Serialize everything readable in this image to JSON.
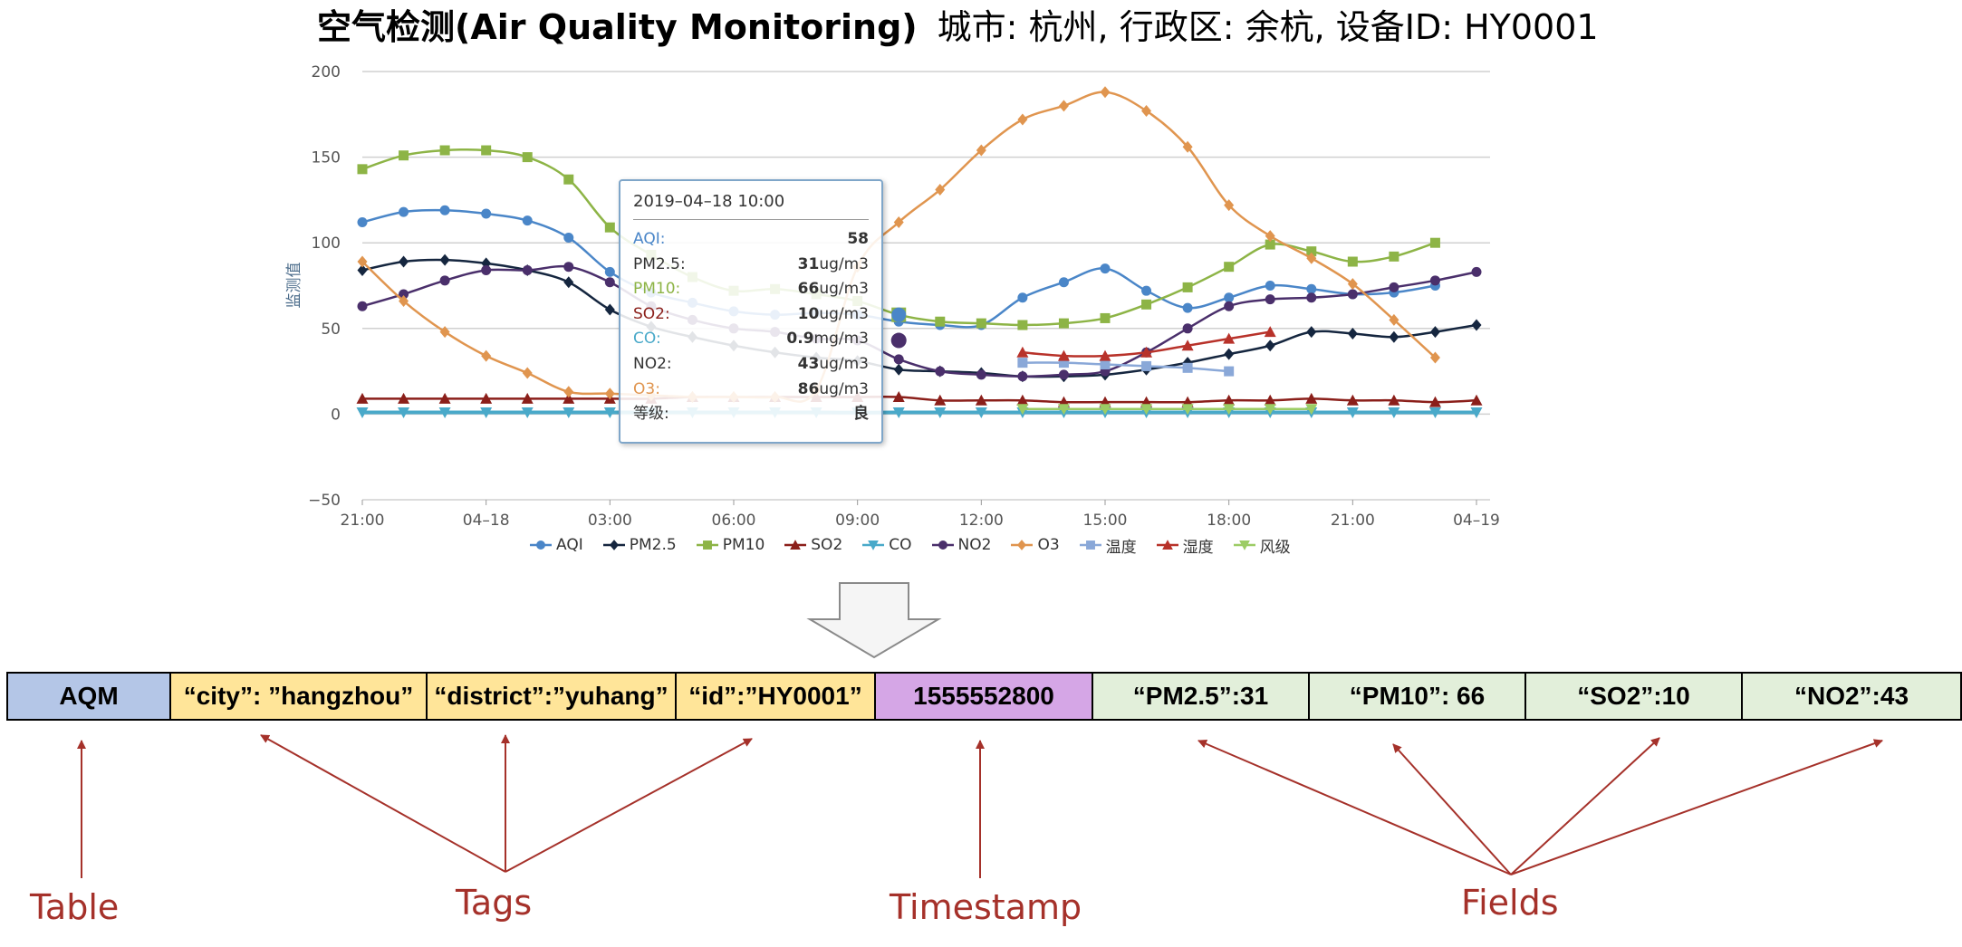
{
  "title": {
    "main": "空气检测(Air Quality Monitoring)",
    "subtitle": "城市: 杭州, 行政区: 余杭, 设备ID: HY0001"
  },
  "chart_data": {
    "type": "line",
    "ylabel": "监测值",
    "xlabel": "",
    "ylim": [
      -50,
      200
    ],
    "yticks": [
      "200",
      "150",
      "100",
      "50",
      "0",
      "−50"
    ],
    "ytick_values": [
      200,
      150,
      100,
      50,
      0,
      -50
    ],
    "xticks": [
      "21:00",
      "04–18",
      "03:00",
      "06:00",
      "09:00",
      "12:00",
      "15:00",
      "18:00",
      "21:00",
      "04–19"
    ],
    "x_hours": [
      0,
      1,
      2,
      3,
      4,
      5,
      6,
      7,
      8,
      9,
      10,
      11,
      12,
      13,
      14,
      15,
      16,
      17,
      18,
      19,
      20,
      21,
      22,
      23,
      24,
      25,
      26,
      27
    ],
    "grid": true,
    "legend_position": "bottom",
    "series": [
      {
        "name": "AQI",
        "color": "#4a86c8",
        "marker": "circle",
        "values": [
          112,
          118,
          119,
          117,
          113,
          103,
          83,
          71,
          65,
          60,
          58,
          59,
          58,
          54,
          52,
          52,
          68,
          77,
          85,
          72,
          62,
          68,
          75,
          73,
          70,
          71,
          75
        ]
      },
      {
        "name": "PM2.5",
        "color": "#15263f",
        "marker": "diamond",
        "values": [
          84,
          89,
          90,
          88,
          84,
          77,
          61,
          51,
          45,
          40,
          36,
          33,
          31,
          26,
          25,
          24,
          22,
          22,
          23,
          26,
          30,
          35,
          40,
          48,
          47,
          45,
          48,
          52
        ]
      },
      {
        "name": "PM10",
        "color": "#8db446",
        "marker": "square",
        "values": [
          143,
          151,
          154,
          154,
          150,
          137,
          109,
          93,
          80,
          72,
          73,
          70,
          66,
          58,
          54,
          53,
          52,
          53,
          56,
          64,
          74,
          86,
          99,
          95,
          89,
          92,
          100
        ]
      },
      {
        "name": "SO2",
        "color": "#8b1f1a",
        "marker": "triangle",
        "values": [
          9,
          9,
          9,
          9,
          9,
          9,
          9,
          9,
          10,
          10,
          10,
          10,
          10,
          10,
          8,
          8,
          8,
          7,
          7,
          7,
          7,
          8,
          8,
          9,
          8,
          8,
          7,
          8
        ]
      },
      {
        "name": "CO",
        "color": "#49a9c9",
        "marker": "triangle-down",
        "values": [
          1,
          1,
          1,
          1,
          1,
          1,
          1,
          1,
          1,
          1,
          1,
          1,
          0.9,
          1,
          1,
          1,
          1,
          1,
          1,
          1,
          1,
          1,
          1,
          1,
          1,
          1,
          1,
          1
        ]
      },
      {
        "name": "NO2",
        "color": "#4a2f6b",
        "marker": "circle",
        "values": [
          63,
          70,
          78,
          84,
          84,
          86,
          77,
          63,
          55,
          50,
          48,
          44,
          43,
          32,
          25,
          23,
          22,
          23,
          25,
          36,
          50,
          63,
          67,
          68,
          70,
          74,
          78,
          83
        ]
      },
      {
        "name": "O3",
        "color": "#e0954f",
        "marker": "diamond",
        "values": [
          89,
          66,
          48,
          34,
          24,
          13,
          12,
          11,
          10,
          10,
          10,
          14,
          86,
          112,
          131,
          154,
          172,
          180,
          188,
          177,
          156,
          122,
          104,
          91,
          76,
          55,
          33
        ]
      },
      {
        "name": "温度",
        "color": "#8aa8d8",
        "marker": "square",
        "values": [
          null,
          null,
          null,
          null,
          null,
          null,
          null,
          null,
          null,
          null,
          null,
          null,
          null,
          null,
          null,
          null,
          30,
          30,
          29,
          28,
          27,
          25
        ]
      },
      {
        "name": "湿度",
        "color": "#b8322a",
        "marker": "triangle",
        "values": [
          null,
          null,
          null,
          null,
          null,
          null,
          null,
          null,
          null,
          null,
          null,
          null,
          null,
          null,
          null,
          null,
          36,
          34,
          34,
          36,
          40,
          44,
          48
        ]
      },
      {
        "name": "风级",
        "color": "#9ccc65",
        "marker": "triangle-down",
        "values": [
          null,
          null,
          null,
          null,
          null,
          null,
          null,
          null,
          null,
          null,
          null,
          null,
          null,
          null,
          null,
          null,
          3,
          3,
          3,
          3,
          3,
          3,
          3,
          3
        ]
      }
    ]
  },
  "tooltip": {
    "time": "2019–04–18 10:00",
    "rows": [
      {
        "label": "AQI:",
        "value": "58",
        "unit": "",
        "color": "#4a86c8"
      },
      {
        "label": "PM2.5:",
        "value": "31",
        "unit": "ug/m3",
        "color": "#333333"
      },
      {
        "label": "PM10:",
        "value": "66",
        "unit": "ug/m3",
        "color": "#8db446"
      },
      {
        "label": "SO2:",
        "value": "10",
        "unit": "ug/m3",
        "color": "#8b1f1a"
      },
      {
        "label": "CO:",
        "value": "0.9",
        "unit": "mg/m3",
        "color": "#49a9c9"
      },
      {
        "label": "NO2:",
        "value": "43",
        "unit": "ug/m3",
        "color": "#333333"
      },
      {
        "label": "O3:",
        "value": "86",
        "unit": "ug/m3",
        "color": "#e0954f"
      },
      {
        "label": "等级:",
        "value": "良",
        "unit": "",
        "color": "#333333"
      }
    ]
  },
  "record": {
    "cells": [
      {
        "text": "AQM",
        "color": "#b4c6e7",
        "kind": "table"
      },
      {
        "text": "“city”: ”hangzhou”",
        "color": "#ffe599",
        "kind": "tag"
      },
      {
        "text": "“district”:”yuhang”",
        "color": "#ffe599",
        "kind": "tag"
      },
      {
        "text": "“id”:”HY0001”",
        "color": "#ffe599",
        "kind": "tag"
      },
      {
        "text": "1555552800",
        "color": "#d5a6e6",
        "kind": "timestamp"
      },
      {
        "text": "“PM2.5”:31",
        "color": "#e2efda",
        "kind": "field"
      },
      {
        "text": "“PM10”: 66",
        "color": "#e2efda",
        "kind": "field"
      },
      {
        "text": "“SO2”:10",
        "color": "#e2efda",
        "kind": "field"
      },
      {
        "text": "“NO2”:43",
        "color": "#e2efda",
        "kind": "field"
      }
    ],
    "labels": {
      "table": "Table",
      "tags": "Tags",
      "timestamp": "Timestamp",
      "fields": "Fields"
    }
  },
  "colors": {
    "annotation": "#a5312a",
    "arrow_fill": "#f5f5f5",
    "arrow_stroke": "#8a8a8a"
  }
}
